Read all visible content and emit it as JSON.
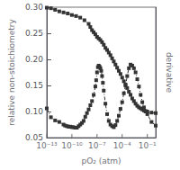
{
  "chart_data": {
    "type": "line",
    "title": "",
    "xlabel": "pO₂ (atm)",
    "ylabel": "relative non-stoichiometry",
    "y2label": "derivative",
    "log": "x",
    "grid": false,
    "xlim": [
      1e-13,
      1
    ],
    "xticks": [
      {
        "value": 1e-13,
        "label": "10⁻¹³"
      },
      {
        "value": 1e-10,
        "label": "10⁻¹⁰"
      },
      {
        "value": 1e-07,
        "label": "10⁻⁷"
      },
      {
        "value": 0.0001,
        "label": "10⁻⁴"
      },
      {
        "value": 0.1,
        "label": "10⁻¹"
      }
    ],
    "ylim": [
      0.05,
      0.3
    ],
    "yticks": [
      0.05,
      {
        "value": 0.1,
        "label": "0.10"
      },
      0.15,
      {
        "value": 0.2,
        "label": "0.20"
      },
      0.25,
      {
        "value": 0.3,
        "label": "0.30"
      }
    ],
    "series": [
      {
        "color": "#333333",
        "marker": "square",
        "line_style": "dashed",
        "x": [
          1e-13,
          3.1622776601683797e-13,
          1e-12,
          3.1622776601683794e-12,
          1e-11,
          3.1622776601683794e-11,
          1e-10,
          3.1622776601683795e-10,
          1e-09,
          3.1622776601683795e-09,
          1e-08,
          1.5848931924611136e-08,
          2.51188643150958e-08,
          3.981071705534973e-08,
          6.309573444801934e-08,
          1e-07,
          1.5848931924611136e-07,
          2.51188643150958e-07,
          3.981071705534973e-07,
          6.309573444801933e-07,
          1e-06,
          1.5848931924611137e-06,
          2.51188643150958e-06,
          3.981071705534973e-06,
          6.309573444801933e-06,
          1e-05,
          1.5848931924611134e-05,
          2.51188643150958e-05,
          3.981071705534973e-05,
          6.309573444801933e-05,
          0.0001,
          0.00015848931924611136,
          0.000251188643150958,
          0.0003981071705534973,
          0.0006309573444801933,
          0.001,
          0.0015848931924611136,
          0.00251188643150958,
          0.003981071705534973,
          0.006309573444801933,
          0.01,
          0.015848931924611134,
          0.0251188643150958,
          0.03981071705534973,
          0.06309573444801933,
          0.1,
          0.31622776601683794,
          1
        ],
        "values": [
          0.299,
          0.298,
          0.295,
          0.292,
          0.29,
          0.288,
          0.285,
          0.283,
          0.28,
          0.275,
          0.268,
          0.262,
          0.256,
          0.252,
          0.248,
          0.243,
          0.24,
          0.237,
          0.233,
          0.228,
          0.222,
          0.218,
          0.213,
          0.208,
          0.202,
          0.196,
          0.19,
          0.184,
          0.178,
          0.172,
          0.165,
          0.158,
          0.152,
          0.145,
          0.138,
          0.132,
          0.125,
          0.12,
          0.115,
          0.111,
          0.108,
          0.106,
          0.104,
          0.102,
          0.101,
          0.1,
          0.098,
          0.097
        ]
      },
      {
        "color": "#333333",
        "marker": "square",
        "line_style": "dashdot",
        "x": [
          1e-13,
          3.1622776601683797e-13,
          1e-12,
          3.1622776601683794e-12,
          1e-11,
          1.5848931924611137e-11,
          2.51188643150958e-11,
          3.981071705534973e-11,
          6.309573444801933e-11,
          1e-10,
          1.5848931924611137e-10,
          2.51188643150958e-10,
          3.981071705534973e-10,
          6.309573444801933e-10,
          1e-09,
          1.5848931924611136e-09,
          2.51188643150958e-09,
          3.981071705534973e-09,
          6.309573444801933e-09,
          1e-08,
          1.5848931924611136e-08,
          2.51188643150958e-08,
          3.981071705534973e-08,
          6.309573444801934e-08,
          7.943282347242815e-08,
          1e-07,
          1.2589254117941672e-07,
          1.5848931924611136e-07,
          1.9952623149688795e-07,
          2.51188643150958e-07,
          3.1622776601683797e-07,
          3.981071705534973e-07,
          5.011872336272724e-07,
          6.309573444801933e-07,
          1e-06,
          1.5848931924611137e-06,
          2.51188643150958e-06,
          3.981071705534973e-06,
          6.309573444801933e-06,
          1e-05,
          1.5848931924611134e-05,
          2.51188643150958e-05,
          3.981071705534973e-05,
          6.309573444801933e-05,
          0.0001,
          0.00015848931924611136,
          0.000251188643150958,
          0.0003981071705534973,
          0.0006309573444801933,
          0.001,
          0.0015848931924611136,
          0.00251188643150958,
          0.003981071705534973,
          0.006309573444801933,
          0.01,
          0.015848931924611134,
          0.0251188643150958,
          0.03981071705534973,
          0.06309573444801933,
          0.1,
          0.31622776601683794,
          1
        ],
        "values": [
          0.106,
          0.089,
          0.083,
          0.08,
          0.075,
          0.073,
          0.072,
          0.071,
          0.071,
          0.07,
          0.07,
          0.069,
          0.069,
          0.072,
          0.075,
          0.078,
          0.082,
          0.09,
          0.097,
          0.104,
          0.112,
          0.12,
          0.132,
          0.148,
          0.16,
          0.175,
          0.185,
          0.188,
          0.186,
          0.183,
          0.178,
          0.168,
          0.155,
          0.14,
          0.115,
          0.095,
          0.082,
          0.075,
          0.072,
          0.07,
          0.074,
          0.082,
          0.092,
          0.105,
          0.118,
          0.135,
          0.15,
          0.168,
          0.183,
          0.19,
          0.188,
          0.183,
          0.175,
          0.162,
          0.148,
          0.132,
          0.118,
          0.108,
          0.1,
          0.095,
          0.08,
          0.073
        ]
      }
    ]
  }
}
